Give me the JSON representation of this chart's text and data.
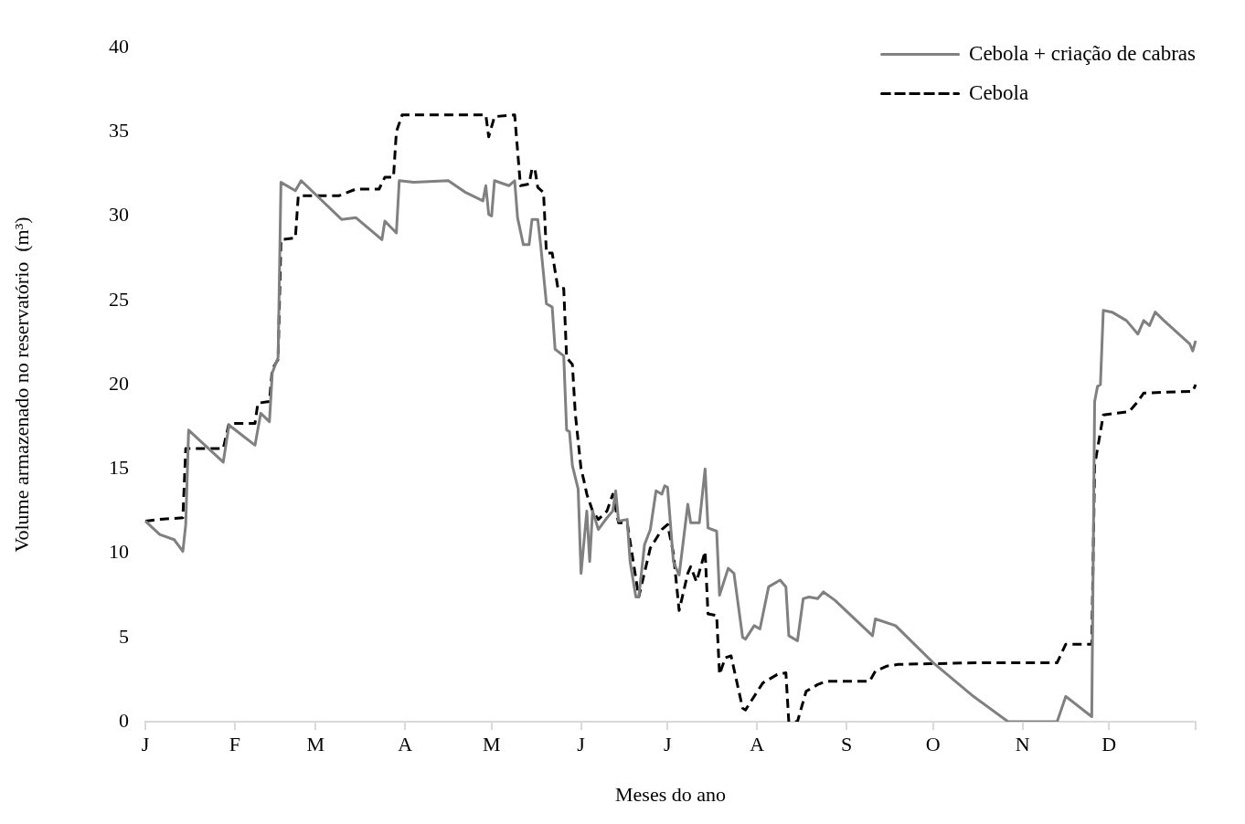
{
  "chart_data": {
    "type": "line",
    "xlabel": "Meses do ano",
    "ylabel": "Volume armazenado no reservatório  (m³)",
    "ylim": [
      0,
      40
    ],
    "yticks": [
      0,
      5,
      10,
      15,
      20,
      25,
      30,
      35,
      40
    ],
    "legend": "top right",
    "marker": "none",
    "categories": [
      "J",
      null,
      null,
      null,
      null,
      null,
      null,
      null,
      null,
      null,
      null,
      null,
      null,
      null,
      null,
      null,
      null,
      null,
      null,
      null,
      null,
      null,
      null,
      null,
      null,
      null,
      null,
      null,
      null,
      null,
      null,
      "F",
      null,
      null,
      null,
      null,
      null,
      null,
      null,
      null,
      null,
      null,
      null,
      null,
      null,
      null,
      null,
      null,
      null,
      null,
      null,
      null,
      null,
      null,
      null,
      null,
      null,
      null,
      null,
      "M",
      null,
      null,
      null,
      null,
      null,
      null,
      null,
      null,
      null,
      null,
      null,
      null,
      null,
      null,
      null,
      null,
      null,
      null,
      null,
      null,
      null,
      null,
      null,
      null,
      null,
      null,
      null,
      null,
      null,
      null,
      "A",
      null,
      null,
      null,
      null,
      null,
      null,
      null,
      null,
      null,
      null,
      null,
      null,
      null,
      null,
      null,
      null,
      null,
      null,
      null,
      null,
      null,
      null,
      null,
      null,
      null,
      null,
      null,
      null,
      null,
      "M",
      null,
      null,
      null,
      null,
      null,
      null,
      null,
      null,
      null,
      null,
      null,
      null,
      null,
      null,
      null,
      null,
      null,
      null,
      null,
      null,
      null,
      null,
      null,
      null,
      null,
      null,
      null,
      null,
      null,
      null,
      "J",
      null,
      null,
      null,
      null,
      null,
      null,
      null,
      null,
      null,
      null,
      null,
      null,
      null,
      null,
      null,
      null,
      null,
      null,
      null,
      null,
      null,
      null,
      null,
      null,
      null,
      null,
      null,
      null,
      null,
      "J",
      null,
      null,
      null,
      null,
      null,
      null,
      null,
      null,
      null,
      null,
      null,
      null,
      null,
      null,
      null,
      null,
      null,
      null,
      null,
      null,
      null,
      null,
      null,
      null,
      null,
      null,
      null,
      null,
      null,
      null,
      "A",
      null,
      null,
      null,
      null,
      null,
      null,
      null,
      null,
      null,
      null,
      null,
      null,
      null,
      null,
      null,
      null,
      null,
      null,
      null,
      null,
      null,
      null,
      null,
      null,
      null,
      null,
      null,
      null,
      null,
      null,
      "S",
      null,
      null,
      null,
      null,
      null,
      null,
      null,
      null,
      null,
      null,
      null,
      null,
      null,
      null,
      null,
      null,
      null,
      null,
      null,
      null,
      null,
      null,
      null,
      null,
      null,
      null,
      null,
      null,
      null,
      "O",
      null,
      null,
      null,
      null,
      null,
      null,
      null,
      null,
      null,
      null,
      null,
      null,
      null,
      null,
      null,
      null,
      null,
      null,
      null,
      null,
      null,
      null,
      null,
      null,
      null,
      null,
      null,
      null,
      null,
      null,
      "N",
      null,
      null,
      null,
      null,
      null,
      null,
      null,
      null,
      null,
      null,
      null,
      null,
      null,
      null,
      null,
      null,
      null,
      null,
      null,
      null,
      null,
      null,
      null,
      null,
      null,
      null,
      null,
      null,
      null,
      "D",
      null,
      null,
      null,
      null,
      null,
      null,
      null,
      null,
      null,
      null,
      null,
      null,
      null,
      null,
      null,
      null,
      null,
      null,
      null,
      null,
      null,
      null,
      null,
      null,
      null,
      null,
      null,
      null,
      null,
      null
    ],
    "series": [
      {
        "name": "Cebola + criação de cabras",
        "color": "#808080",
        "line_style": "solid",
        "values": [
          11.9,
          null,
          null,
          null,
          null,
          11.1,
          null,
          null,
          null,
          null,
          10.8,
          null,
          null,
          10.1,
          11.7,
          17.3,
          null,
          null,
          null,
          null,
          null,
          null,
          null,
          null,
          null,
          null,
          null,
          15.4,
          null,
          17.6,
          null,
          null,
          null,
          null,
          null,
          null,
          null,
          null,
          16.4,
          null,
          18.3,
          null,
          null,
          17.8,
          20.7,
          null,
          21.6,
          32.0,
          null,
          null,
          null,
          null,
          31.5,
          null,
          32.1,
          null,
          null,
          null,
          null,
          null,
          null,
          null,
          null,
          null,
          null,
          null,
          null,
          null,
          29.8,
          null,
          null,
          null,
          null,
          29.9,
          null,
          null,
          null,
          null,
          null,
          null,
          null,
          null,
          28.6,
          29.7,
          null,
          null,
          null,
          29.0,
          32.1,
          null,
          null,
          null,
          null,
          32.0,
          null,
          null,
          null,
          null,
          null,
          null,
          null,
          null,
          null,
          null,
          null,
          32.1,
          null,
          null,
          null,
          null,
          null,
          31.4,
          null,
          null,
          null,
          null,
          null,
          30.9,
          31.8,
          30.1,
          30.0,
          32.1,
          null,
          null,
          null,
          null,
          31.8,
          null,
          32.1,
          29.9,
          null,
          28.3,
          null,
          28.3,
          29.8,
          null,
          29.8,
          28.3,
          null,
          24.8,
          null,
          24.6,
          22.1,
          null,
          null,
          21.7,
          17.3,
          17.2,
          15.2,
          null,
          13.8,
          8.8,
          null,
          12.5,
          9.5,
          12.5,
          null,
          11.4,
          null,
          null,
          12.1,
          null,
          12.5,
          13.7,
          11.9,
          null,
          null,
          12.0,
          9.5,
          null,
          7.4,
          7.4,
          null,
          10.5,
          null,
          11.4,
          null,
          13.7,
          null,
          13.5,
          14.0,
          13.9,
          null,
          9.5,
          null,
          8.7,
          null,
          null,
          12.9,
          11.8,
          null,
          null,
          11.8,
          null,
          15.0,
          11.5,
          null,
          null,
          11.3,
          7.5,
          null,
          null,
          9.1,
          null,
          8.8,
          null,
          null,
          5.0,
          4.9,
          null,
          null,
          5.7,
          null,
          5.5,
          null,
          null,
          8.0,
          null,
          null,
          null,
          8.4,
          null,
          8.0,
          5.1,
          null,
          null,
          4.8,
          null,
          7.3,
          null,
          7.4,
          null,
          null,
          7.3,
          null,
          7.7,
          null,
          null,
          null,
          7.2,
          null,
          null,
          null,
          null,
          null,
          null,
          null,
          null,
          null,
          null,
          null,
          null,
          5.1,
          6.1,
          null,
          null,
          null,
          null,
          null,
          null,
          5.7,
          null,
          null,
          null,
          null,
          null,
          null,
          null,
          null,
          null,
          null,
          null,
          null,
          3.5,
          null,
          null,
          null,
          null,
          null,
          null,
          null,
          null,
          null,
          null,
          null,
          null,
          null,
          1.5,
          null,
          null,
          null,
          null,
          null,
          null,
          null,
          null,
          null,
          null,
          null,
          0,
          null,
          null,
          null,
          null,
          null,
          null,
          null,
          null,
          null,
          null,
          null,
          null,
          null,
          null,
          null,
          null,
          0,
          null,
          null,
          1.5,
          null,
          null,
          null,
          null,
          null,
          null,
          null,
          null,
          0.3,
          19.0,
          19.9,
          20.0,
          24.4,
          null,
          null,
          24.3,
          null,
          null,
          null,
          null,
          23.8,
          null,
          null,
          null,
          23.0,
          null,
          23.8,
          null,
          23.5,
          null,
          24.3,
          null,
          null,
          23.8,
          null,
          null,
          null,
          null,
          null,
          null,
          null,
          null,
          22.4,
          22.0,
          22.6
        ]
      },
      {
        "name": "Cebola",
        "color": "#000000",
        "line_style": "dashed",
        "values": [
          11.9,
          null,
          null,
          null,
          null,
          12.0,
          null,
          null,
          null,
          null,
          null,
          null,
          null,
          12.1,
          16.2,
          null,
          null,
          null,
          null,
          null,
          null,
          null,
          null,
          null,
          null,
          null,
          null,
          16.2,
          null,
          17.7,
          null,
          null,
          null,
          null,
          null,
          null,
          null,
          null,
          17.7,
          18.9,
          null,
          null,
          null,
          19.0,
          20.9,
          null,
          21.5,
          28.6,
          null,
          null,
          null,
          null,
          28.7,
          31.2,
          null,
          null,
          null,
          null,
          null,
          null,
          null,
          null,
          null,
          null,
          null,
          null,
          null,
          31.2,
          null,
          null,
          null,
          null,
          null,
          31.6,
          null,
          null,
          null,
          null,
          null,
          null,
          null,
          31.6,
          null,
          32.3,
          null,
          null,
          32.3,
          35.0,
          null,
          36.0,
          null,
          null,
          null,
          null,
          null,
          null,
          null,
          null,
          null,
          null,
          null,
          null,
          null,
          null,
          null,
          null,
          null,
          null,
          null,
          null,
          null,
          null,
          null,
          null,
          null,
          null,
          null,
          null,
          36.0,
          34.7,
          null,
          35.9,
          null,
          null,
          null,
          null,
          null,
          null,
          36.0,
          null,
          31.8,
          null,
          null,
          31.9,
          32.8,
          32.8,
          31.7,
          null,
          31.4,
          27.8,
          null,
          27.8,
          null,
          25.7,
          null,
          25.7,
          21.6,
          null,
          21.2,
          18.3,
          null,
          15.0,
          14.3,
          13.5,
          null,
          12.5,
          null,
          12.0,
          null,
          null,
          12.5,
          null,
          13.5,
          null,
          11.8,
          null,
          null,
          11.8,
          null,
          null,
          null,
          7.4,
          null,
          null,
          null,
          10.3,
          null,
          null,
          null,
          11.4,
          null,
          11.7,
          null,
          10.0,
          null,
          6.6,
          null,
          null,
          8.8,
          9.2,
          null,
          8.3,
          null,
          null,
          10.1,
          6.4,
          null,
          null,
          6.3,
          2.8,
          null,
          3.8,
          null,
          3.9,
          null,
          null,
          null,
          0.8,
          0.7,
          null,
          null,
          null,
          null,
          null,
          2.3,
          null,
          null,
          null,
          null,
          2.8,
          null,
          null,
          2.9,
          0,
          null,
          null,
          0,
          null,
          null,
          1.8,
          null,
          null,
          null,
          2.2,
          null,
          null,
          2.4,
          null,
          null,
          null,
          null,
          null,
          null,
          null,
          null,
          null,
          null,
          null,
          null,
          null,
          null,
          2.4,
          null,
          3.0,
          null,
          null,
          null,
          3.3,
          null,
          null,
          null,
          3.4,
          null,
          null,
          null,
          null,
          null,
          null,
          null,
          null,
          null,
          null,
          null,
          null,
          null,
          null,
          null,
          null,
          null,
          null,
          null,
          null,
          null,
          null,
          null,
          null,
          null,
          null,
          null,
          null,
          3.5,
          null,
          null,
          null,
          null,
          null,
          null,
          null,
          null,
          null,
          null,
          null,
          null,
          null,
          null,
          null,
          null,
          null,
          null,
          null,
          null,
          null,
          null,
          null,
          null,
          null,
          3.5,
          null,
          null,
          4.6,
          null,
          null,
          null,
          null,
          null,
          null,
          null,
          null,
          4.6,
          15.2,
          null,
          null,
          18.2,
          null,
          null,
          null,
          null,
          null,
          null,
          null,
          null,
          18.4,
          null,
          null,
          19.0,
          null,
          19.5,
          null,
          null,
          null,
          null,
          null,
          null,
          null,
          null,
          null,
          null,
          null,
          null,
          null,
          null,
          null,
          null,
          19.6,
          20.0
        ]
      }
    ]
  }
}
